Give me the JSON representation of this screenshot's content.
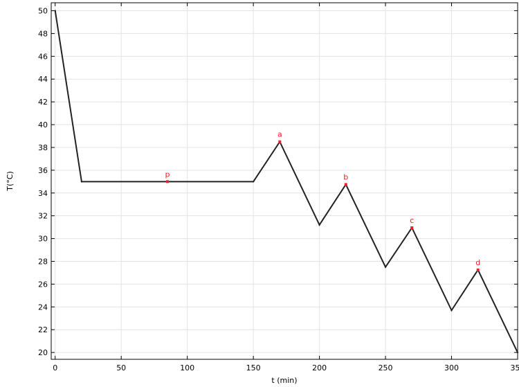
{
  "chart_data": {
    "type": "line",
    "title": "",
    "xlabel": "t (min)",
    "ylabel": "T(°C)",
    "xlim": [
      -3,
      350
    ],
    "ylim": [
      19.4,
      50.7
    ],
    "grid": true,
    "x_ticks": [
      0,
      50,
      100,
      150,
      200,
      250,
      300,
      350
    ],
    "y_ticks": [
      20,
      22,
      24,
      26,
      28,
      30,
      32,
      34,
      36,
      38,
      40,
      42,
      44,
      46,
      48,
      50
    ],
    "series": [
      {
        "x": [
          0,
          20,
          150,
          170,
          200,
          220,
          250,
          270,
          300,
          320,
          350
        ],
        "y": [
          50,
          35,
          35,
          38.5,
          31.2,
          34.75,
          27.5,
          30.95,
          23.7,
          27.25,
          20
        ],
        "color": "#222222"
      }
    ],
    "annotations": [
      {
        "label": "p",
        "x": 85,
        "y": 35.0,
        "color": "#e8202a"
      },
      {
        "label": "a",
        "x": 170,
        "y": 38.5,
        "color": "#e8202a"
      },
      {
        "label": "b",
        "x": 220,
        "y": 34.75,
        "color": "#e8202a"
      },
      {
        "label": "c",
        "x": 270,
        "y": 30.95,
        "color": "#e8202a"
      },
      {
        "label": "d",
        "x": 320,
        "y": 27.25,
        "color": "#e8202a"
      }
    ]
  }
}
